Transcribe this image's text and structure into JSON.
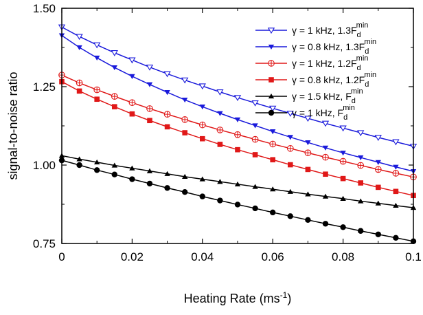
{
  "chart_data": {
    "type": "line",
    "xlabel": "Heating Rate (ms-1)",
    "xlabel_parts": {
      "main": "Heating Rate (ms",
      "sup": "-1",
      "close": ")"
    },
    "ylabel": "signal-to-noise ratio",
    "xlim": [
      0,
      0.1
    ],
    "ylim": [
      0.75,
      1.5
    ],
    "x_ticks": [
      0,
      0.02,
      0.04,
      0.06,
      0.08,
      0.1
    ],
    "x_tick_labels": [
      "0",
      "0.02",
      "0.04",
      "0.06",
      "0.08",
      "0.1"
    ],
    "y_ticks": [
      0.75,
      1.0,
      1.25,
      1.5
    ],
    "y_tick_labels": [
      "0.75",
      "1.00",
      "1.25",
      "1.50"
    ],
    "grid": false,
    "legend_position": "top-right",
    "x": [
      0,
      0.005,
      0.01,
      0.015,
      0.02,
      0.025,
      0.03,
      0.035,
      0.04,
      0.045,
      0.05,
      0.055,
      0.06,
      0.065,
      0.07,
      0.075,
      0.08,
      0.085,
      0.09,
      0.095,
      0.1
    ],
    "series": [
      {
        "name": "γ = 1 kHz, 1.3F_d^min",
        "legend": {
          "prefix": "γ = 1 kHz, 1.3F",
          "sub": "d",
          "sup": "min"
        },
        "color": "#1a1adb",
        "marker": "triangle-down-open",
        "values": [
          1.44,
          1.41,
          1.383,
          1.358,
          1.335,
          1.312,
          1.291,
          1.271,
          1.252,
          1.233,
          1.215,
          1.198,
          1.181,
          1.165,
          1.149,
          1.133,
          1.118,
          1.103,
          1.088,
          1.074,
          1.06
        ]
      },
      {
        "name": "γ = 0.8 kHz, 1.3F_d^min",
        "legend": {
          "prefix": "γ = 0.8 kHz, 1.3F",
          "sub": "d",
          "sup": "min"
        },
        "color": "#1a1adb",
        "marker": "triangle-down-filled",
        "values": [
          1.413,
          1.375,
          1.342,
          1.311,
          1.283,
          1.257,
          1.232,
          1.208,
          1.186,
          1.165,
          1.145,
          1.126,
          1.107,
          1.089,
          1.072,
          1.055,
          1.039,
          1.024,
          1.009,
          0.994,
          0.98
        ]
      },
      {
        "name": "γ = 1 kHz, 1.2F_d^min",
        "legend": {
          "prefix": "γ = 1 kHz, 1.2F",
          "sub": "d",
          "sup": "min"
        },
        "color": "#e01818",
        "marker": "circle-plus-open",
        "values": [
          1.287,
          1.262,
          1.24,
          1.219,
          1.199,
          1.18,
          1.162,
          1.145,
          1.128,
          1.112,
          1.097,
          1.082,
          1.067,
          1.053,
          1.039,
          1.025,
          1.012,
          0.999,
          0.986,
          0.974,
          0.962
        ]
      },
      {
        "name": "γ = 0.8 kHz, 1.2F_d^min",
        "legend": {
          "prefix": "γ = 0.8 kHz, 1.2F",
          "sub": "d",
          "sup": "min"
        },
        "color": "#e01818",
        "marker": "square-filled",
        "values": [
          1.266,
          1.236,
          1.21,
          1.186,
          1.163,
          1.142,
          1.122,
          1.103,
          1.084,
          1.066,
          1.049,
          1.033,
          1.017,
          1.001,
          0.986,
          0.971,
          0.957,
          0.943,
          0.929,
          0.916,
          0.903
        ]
      },
      {
        "name": "γ = 1.5 kHz, F_d^min",
        "legend": {
          "prefix": "γ = 1.5 kHz, F",
          "sub": "d",
          "sup": "min"
        },
        "color": "#000000",
        "marker": "triangle-up-filled",
        "values": [
          1.03,
          1.019,
          1.009,
          0.999,
          0.99,
          0.981,
          0.972,
          0.963,
          0.955,
          0.947,
          0.939,
          0.931,
          0.923,
          0.915,
          0.907,
          0.9,
          0.893,
          0.885,
          0.878,
          0.871,
          0.864
        ]
      },
      {
        "name": "γ = 1 kHz, F_d^min",
        "legend": {
          "prefix": "γ = 1 kHz, F",
          "sub": "d",
          "sup": "min"
        },
        "color": "#000000",
        "marker": "circle-filled",
        "values": [
          1.015,
          1.0,
          0.984,
          0.97,
          0.955,
          0.941,
          0.927,
          0.914,
          0.9,
          0.887,
          0.874,
          0.862,
          0.849,
          0.837,
          0.825,
          0.813,
          0.802,
          0.79,
          0.779,
          0.768,
          0.757
        ]
      }
    ]
  }
}
